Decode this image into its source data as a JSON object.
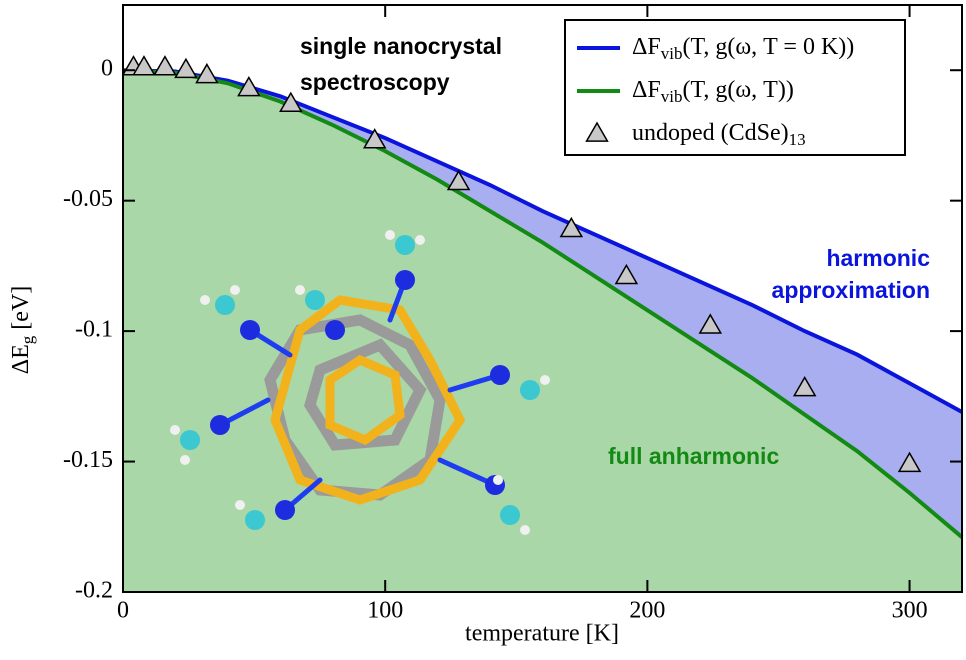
{
  "chart_data": {
    "type": "line",
    "xlabel": "temperature [K]",
    "ylabel": "ΔEg [eV]",
    "xlim": [
      0,
      320
    ],
    "xticks": [
      0,
      100,
      200,
      300
    ],
    "ylim": [
      -0.2,
      0.025
    ],
    "yticks": [
      0,
      -0.05,
      -0.1,
      -0.15,
      -0.2
    ],
    "annotations": [
      "single nanocrystal",
      "spectroscopy",
      "harmonic",
      "approximation",
      "full anharmonic"
    ],
    "series": [
      {
        "name": "ΔFvib(T, g(ω, T = 0 K))",
        "color": "#0a14dc",
        "fill": "#a9aef0",
        "x": [
          0,
          20,
          40,
          60,
          80,
          100,
          120,
          140,
          160,
          180,
          200,
          220,
          240,
          260,
          280,
          300,
          320
        ],
        "values": [
          0,
          -0.0005,
          -0.004,
          -0.01,
          -0.018,
          -0.026,
          -0.035,
          -0.044,
          -0.054,
          -0.063,
          -0.072,
          -0.081,
          -0.09,
          -0.1,
          -0.109,
          -0.12,
          -0.131
        ]
      },
      {
        "name": "ΔFvib(T, g(ω, T))",
        "color": "#138a13",
        "fill": "#a9d7a7",
        "x": [
          0,
          20,
          40,
          60,
          80,
          100,
          120,
          140,
          160,
          180,
          200,
          220,
          240,
          260,
          280,
          300,
          320
        ],
        "values": [
          0,
          -0.001,
          -0.005,
          -0.012,
          -0.021,
          -0.031,
          -0.042,
          -0.054,
          -0.066,
          -0.079,
          -0.092,
          -0.105,
          -0.118,
          -0.132,
          -0.146,
          -0.162,
          -0.179
        ]
      },
      {
        "name": "undoped (CdSe)13",
        "color": "#c8c8c8",
        "marker": "triangle",
        "x": [
          4,
          8,
          16,
          24,
          32,
          48,
          64,
          96,
          128,
          171,
          192,
          224,
          260,
          300
        ],
        "values": [
          0.001,
          0.001,
          0.001,
          0,
          -0.002,
          -0.007,
          -0.013,
          -0.027,
          -0.043,
          -0.061,
          -0.079,
          -0.098,
          -0.122,
          -0.151
        ]
      }
    ]
  }
}
